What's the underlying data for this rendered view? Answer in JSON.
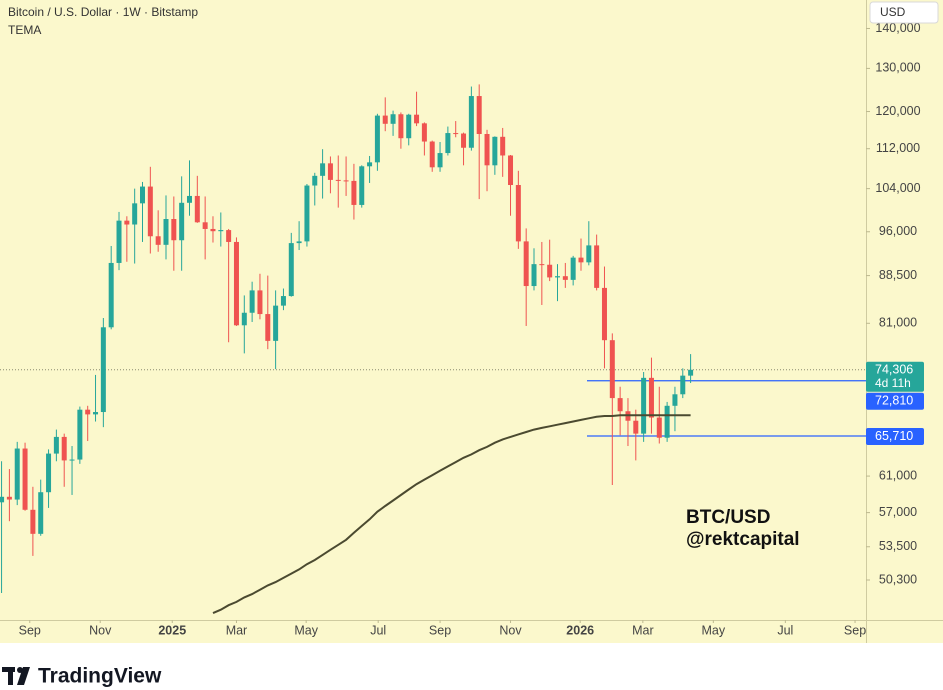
{
  "header": {
    "title": "Bitcoin / U.S. Dollar · 1W · Bitstamp",
    "currency": "USD"
  },
  "watermark": [
    "BTC/USD",
    "@rektcapital"
  ],
  "brand": "TradingView",
  "chart_data": {
    "type": "candlestick",
    "log_scale": true,
    "up_color": "#26a69a",
    "down_color": "#ef5350",
    "xlim": [
      -0.2,
      110.4
    ],
    "xticks": [
      {
        "value": 3.6,
        "label": "Sep"
      },
      {
        "value": 12.6,
        "label": "Nov"
      },
      {
        "value": 21.8,
        "label": "2025"
      },
      {
        "value": 30.0,
        "label": "Mar"
      },
      {
        "value": 38.9,
        "label": "May"
      },
      {
        "value": 48.1,
        "label": "Jul"
      },
      {
        "value": 56.0,
        "label": "Sep"
      },
      {
        "value": 65.0,
        "label": "Nov"
      },
      {
        "value": 73.9,
        "label": "2026"
      },
      {
        "value": 81.9,
        "label": "Mar"
      },
      {
        "value": 90.9,
        "label": "May"
      },
      {
        "value": 100.1,
        "label": "Jul"
      },
      {
        "value": 109.0,
        "label": "Sep"
      }
    ],
    "ylim": [
      46700,
      147600
    ],
    "yticks": [
      {
        "value": 140000,
        "label": "140,000"
      },
      {
        "value": 130000,
        "label": "130,000"
      },
      {
        "value": 120000,
        "label": "120,000"
      },
      {
        "value": 112000,
        "label": "112,000"
      },
      {
        "value": 104000,
        "label": "104,000"
      },
      {
        "value": 96000,
        "label": "96,000"
      },
      {
        "value": 88500,
        "label": "88,500"
      },
      {
        "value": 81000,
        "label": "81,000"
      },
      {
        "value": 61000,
        "label": "61,000"
      },
      {
        "value": 57000,
        "label": "57,000"
      },
      {
        "value": 53500,
        "label": "53,500"
      },
      {
        "value": 50300,
        "label": "50,300"
      }
    ],
    "open": [
      58100,
      58700,
      58400,
      64200,
      57300,
      54800,
      59200,
      63600,
      65600,
      62800,
      62900,
      69000,
      68400,
      68700,
      80400,
      90600,
      98000,
      97300,
      101200,
      104400,
      95200,
      93700,
      98300,
      94500,
      101300,
      102600,
      97700,
      96500,
      96100,
      96300,
      94200,
      80700,
      82600,
      86100,
      82400,
      78400,
      83700,
      85200,
      94000,
      94300,
      104600,
      106500,
      109000,
      105700,
      105600,
      105500,
      100900,
      108400,
      109200,
      119100,
      117300,
      119400,
      114200,
      119300,
      117400,
      113500,
      108200,
      111100,
      115300,
      115200,
      112200,
      123500,
      115100,
      108600,
      114500,
      110600,
      104700,
      94300,
      86800,
      90400,
      90300,
      88200,
      88400,
      87800,
      91500,
      90700,
      93600,
      86500,
      78500,
      70500,
      68800,
      67600,
      66000,
      73200,
      68000,
      65500,
      69500,
      71000,
      73500
    ],
    "high": [
      62700,
      61800,
      65000,
      64900,
      59800,
      60600,
      64100,
      66500,
      66000,
      64500,
      69400,
      69500,
      73600,
      81800,
      93500,
      99600,
      98800,
      104000,
      105300,
      108300,
      99900,
      102700,
      102500,
      106400,
      109600,
      106500,
      102500,
      98800,
      99500,
      96500,
      95000,
      85300,
      87500,
      88800,
      88500,
      86100,
      86400,
      95800,
      97900,
      104900,
      107100,
      111900,
      110400,
      110600,
      110400,
      108900,
      108600,
      110500,
      119500,
      123200,
      120200,
      119800,
      119500,
      124500,
      117600,
      113700,
      113400,
      116700,
      117900,
      115400,
      125700,
      126200,
      116000,
      114600,
      116400,
      110700,
      107500,
      96600,
      93100,
      94200,
      94600,
      90400,
      90600,
      91800,
      94800,
      97900,
      95500,
      90000,
      79500,
      72000,
      70500,
      69000,
      74000,
      76000,
      72000,
      70000,
      72000,
      74500,
      76500
    ],
    "low": [
      49100,
      56100,
      57800,
      57200,
      52600,
      54600,
      57500,
      62700,
      59800,
      58900,
      62400,
      65100,
      67500,
      66800,
      80100,
      89400,
      90800,
      90500,
      94200,
      92200,
      92500,
      91200,
      89300,
      89300,
      98900,
      97600,
      91200,
      94100,
      93400,
      78200,
      80600,
      76600,
      81200,
      81600,
      77200,
      74400,
      83000,
      85100,
      92800,
      93400,
      100800,
      102100,
      103100,
      100400,
      102600,
      98200,
      100400,
      105100,
      107500,
      115700,
      114700,
      112000,
      112700,
      116800,
      110600,
      107300,
      107300,
      110600,
      114400,
      108600,
      111600,
      102000,
      103500,
      106700,
      106300,
      98900,
      93000,
      80600,
      86100,
      83800,
      87600,
      84400,
      86500,
      86900,
      89300,
      90200,
      86100,
      74500,
      60000,
      65800,
      64500,
      62800,
      65000,
      66000,
      64800,
      65000,
      66300,
      70500,
      72500
    ],
    "close": [
      58700,
      58400,
      64200,
      57300,
      54800,
      59200,
      63600,
      65600,
      62800,
      62900,
      69000,
      68400,
      68700,
      80400,
      90600,
      98000,
      97300,
      101200,
      104400,
      95200,
      93700,
      98300,
      94500,
      101300,
      102600,
      97700,
      96500,
      96100,
      96300,
      94200,
      80700,
      82600,
      86100,
      82400,
      78400,
      83700,
      85200,
      94000,
      94300,
      104600,
      106500,
      109000,
      105700,
      105600,
      105500,
      100900,
      108400,
      109200,
      119100,
      117300,
      119400,
      114200,
      119300,
      117400,
      113500,
      108200,
      111100,
      115300,
      115200,
      112200,
      123500,
      115100,
      108600,
      114500,
      110600,
      104700,
      94300,
      86800,
      90400,
      90300,
      88200,
      88400,
      87800,
      91500,
      90700,
      93600,
      86500,
      78500,
      70500,
      68800,
      67600,
      66000,
      73200,
      68000,
      65500,
      69500,
      71000,
      73500,
      74306
    ],
    "series": [
      {
        "name": "TEMA",
        "color": "#4b4a30",
        "values": [
          null,
          null,
          null,
          null,
          null,
          null,
          null,
          null,
          null,
          null,
          null,
          null,
          null,
          null,
          null,
          null,
          null,
          null,
          null,
          null,
          null,
          null,
          null,
          null,
          null,
          null,
          null,
          47300,
          47600,
          48000,
          48300,
          48700,
          49000,
          49400,
          49800,
          50100,
          50500,
          50900,
          51300,
          51800,
          52200,
          52700,
          53200,
          53700,
          54200,
          54900,
          55600,
          56300,
          57100,
          57700,
          58300,
          58900,
          59500,
          60100,
          60600,
          61100,
          61600,
          62100,
          62600,
          63100,
          63500,
          64000,
          64400,
          64900,
          65300,
          65600,
          65900,
          66200,
          66500,
          66700,
          66900,
          67100,
          67300,
          67500,
          67700,
          67900,
          68100,
          68200,
          68200,
          68300,
          68300,
          68300,
          68300,
          68300,
          68300,
          68300,
          68300,
          68300,
          68300
        ]
      }
    ],
    "price_lines": [
      {
        "value": 74306,
        "label": "74,306",
        "color": "#26a69a",
        "style": "dotted"
      },
      {
        "value": 72810,
        "label": "72,810",
        "color": "#2962ff",
        "style": "solid"
      },
      {
        "value": 65710,
        "label": "65,710",
        "color": "#2962ff",
        "style": "solid"
      }
    ],
    "countdown": "4d 11h"
  }
}
